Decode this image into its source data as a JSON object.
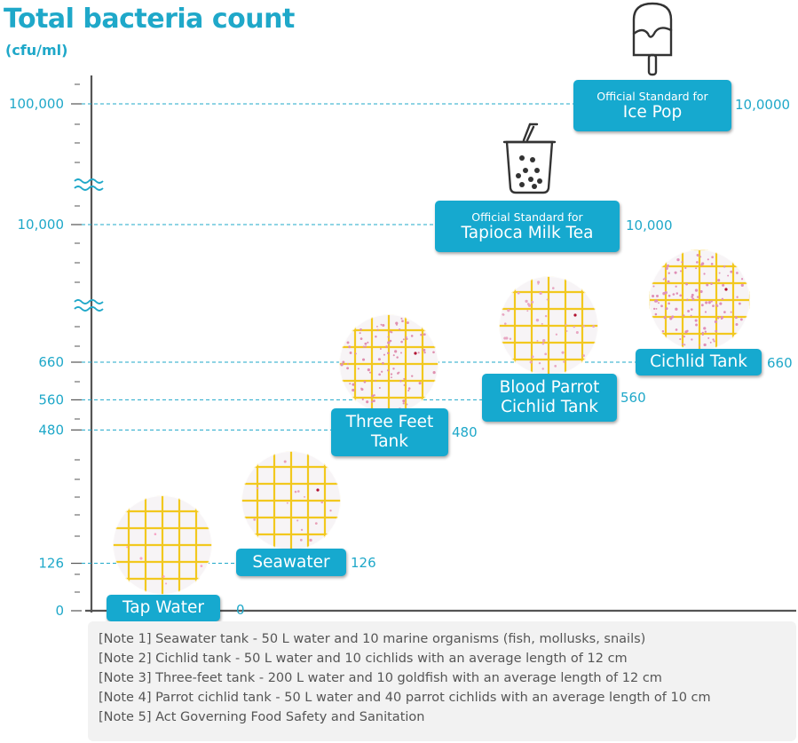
{
  "title": "Total bacteria count",
  "unit": "(cfu/ml)",
  "chart_data": {
    "type": "scatter",
    "ylabel": "Total bacteria count (cfu/ml)",
    "y_tick_labels": [
      "0",
      "126",
      "480",
      "560",
      "660",
      "10,000",
      "100,000"
    ],
    "axis_breaks": [
      "between 660 and 10,000",
      "between 10,000 and 100,000"
    ],
    "points": [
      {
        "label": "Tap Water",
        "value": 0,
        "value_label": "0"
      },
      {
        "label": "Seawater",
        "value": 126,
        "value_label": "126"
      },
      {
        "label": "Three Feet Tank",
        "lines": [
          "Three Feet",
          "Tank"
        ],
        "value": 480,
        "value_label": "480"
      },
      {
        "label": "Blood Parrot Cichlid Tank",
        "lines": [
          "Blood Parrot",
          "Cichlid Tank"
        ],
        "value": 560,
        "value_label": "560"
      },
      {
        "label": "Cichlid Tank",
        "value": 660,
        "value_label": "660"
      }
    ],
    "standards": [
      {
        "prefix": "Official Standard for",
        "name": "Tapioca Milk Tea",
        "value": 10000,
        "value_label": "10,000",
        "icon": "bubble-tea-icon"
      },
      {
        "prefix": "Official Standard for",
        "name": "Ice Pop",
        "value": 100000,
        "value_label": "10,0000",
        "icon": "ice-pop-icon"
      }
    ],
    "colors": {
      "accent": "#16a9cf",
      "axis": "#555555",
      "dashed": "#1fa8c9",
      "grid": "#f2c81e"
    }
  },
  "notes": [
    "[Note 1] Seawater tank - 50 L water and 10 marine organisms (fish, mollusks, snails)",
    "[Note 2] Cichlid tank - 50 L water and 10 cichlids with an average length of 12 cm",
    "[Note 3] Three-feet tank - 200 L water and 10 goldfish with an average length of 12 cm",
    "[Note 4] Parrot cichlid tank - 50 L water and 40 parrot cichlids with an average length of 10 cm",
    "[Note 5] Act Governing Food Safety and Sanitation"
  ]
}
